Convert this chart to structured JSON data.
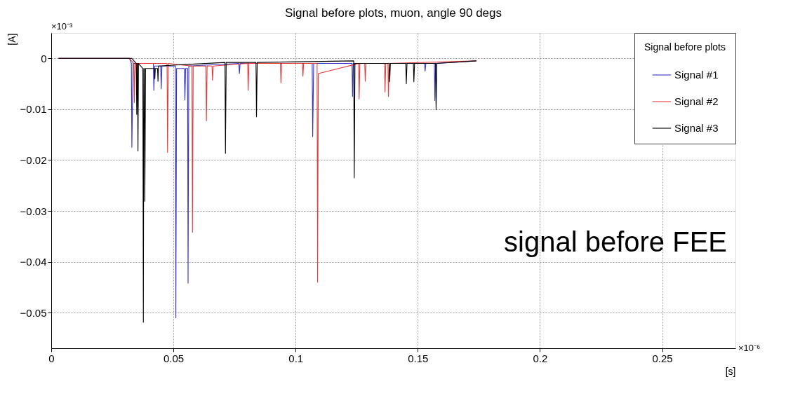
{
  "chart_data": {
    "type": "line",
    "title": "Signal before plots, muon, angle 90 degs",
    "xlabel": "[s]",
    "ylabel": "[A]",
    "legend_title": "Signal before plots",
    "xlim": [
      0,
      0.28
    ],
    "ylim": [
      -0.057,
      0.005
    ],
    "xticks": [
      0,
      0.05,
      0.1,
      0.15,
      0.2,
      0.25
    ],
    "yticks": [
      0,
      -0.01,
      -0.02,
      -0.03,
      -0.04,
      -0.05
    ],
    "grid": true,
    "legend": "top right",
    "marker": "none",
    "line_style": "solid",
    "annotations": [
      "×10⁻³",
      "×10⁻⁶",
      "signal before FEE"
    ],
    "series": [
      {
        "name": "Signal #1",
        "color": "#3333cc",
        "x": [
          0.003,
          0.032,
          0.0328,
          0.033,
          0.0335,
          0.0418,
          0.042,
          0.0423,
          0.0448,
          0.045,
          0.0453,
          0.0508,
          0.051,
          0.0513,
          0.0545,
          0.0547,
          0.055,
          0.0558,
          0.056,
          0.0563,
          0.0768,
          0.077,
          0.0773,
          0.1068,
          0.107,
          0.1074,
          0.1231,
          0.1233,
          0.1236,
          0.1528,
          0.153,
          0.1533,
          0.1568,
          0.157,
          0.1573,
          0.174
        ],
        "values": [
          0,
          0,
          -0.001,
          -0.0175,
          -0.001,
          -0.001,
          -0.0063,
          -0.0015,
          -0.0015,
          -0.006,
          -0.0015,
          -0.0015,
          -0.051,
          -0.002,
          -0.002,
          -0.0082,
          -0.002,
          -0.002,
          -0.0442,
          -0.0015,
          -0.001,
          -0.003,
          -0.001,
          -0.001,
          -0.0154,
          -0.001,
          -0.001,
          -0.0075,
          -0.001,
          -0.001,
          -0.0025,
          -0.001,
          -0.001,
          -0.0083,
          -0.001,
          -0.0005
        ]
      },
      {
        "name": "Signal #2",
        "color": "#e83a3a",
        "x": [
          0.003,
          0.032,
          0.0338,
          0.034,
          0.0343,
          0.0348,
          0.035,
          0.0353,
          0.0474,
          0.0476,
          0.0479,
          0.0576,
          0.0578,
          0.0581,
          0.0633,
          0.0635,
          0.0638,
          0.0658,
          0.066,
          0.0663,
          0.0804,
          0.0806,
          0.0809,
          0.0938,
          0.094,
          0.0943,
          0.1028,
          0.103,
          0.1033,
          0.1088,
          0.109,
          0.1093,
          0.1258,
          0.126,
          0.1263,
          0.1283,
          0.1285,
          0.1288,
          0.1364,
          0.1366,
          0.1369,
          0.1378,
          0.138,
          0.1383,
          0.174
        ],
        "values": [
          0,
          0,
          -0.001,
          -0.0087,
          -0.001,
          -0.001,
          -0.005,
          -0.001,
          -0.001,
          -0.0185,
          -0.001,
          -0.0015,
          -0.0342,
          -0.0015,
          -0.0015,
          -0.0123,
          -0.0015,
          -0.0015,
          -0.0043,
          -0.0015,
          -0.001,
          -0.0063,
          -0.001,
          -0.001,
          -0.0048,
          -0.001,
          -0.001,
          -0.0035,
          -0.001,
          -0.001,
          -0.044,
          -0.003,
          -0.001,
          -0.008,
          -0.001,
          -0.001,
          -0.0045,
          -0.001,
          -0.001,
          -0.0066,
          -0.001,
          -0.001,
          -0.0075,
          -0.001,
          -0.0005
        ]
      },
      {
        "name": "Signal #3",
        "color": "#000000",
        "x": [
          0.003,
          0.033,
          0.0348,
          0.035,
          0.0352,
          0.0353,
          0.0355,
          0.0357,
          0.0375,
          0.0377,
          0.0379,
          0.0381,
          0.0383,
          0.0386,
          0.0422,
          0.0424,
          0.0426,
          0.0435,
          0.0437,
          0.0439,
          0.0711,
          0.0713,
          0.0716,
          0.0838,
          0.084,
          0.0843,
          0.1238,
          0.124,
          0.1243,
          0.1383,
          0.1385,
          0.1388,
          0.1451,
          0.1453,
          0.1456,
          0.1482,
          0.1484,
          0.1487,
          0.1573,
          0.1575,
          0.1578,
          0.174
        ],
        "values": [
          0,
          0,
          -0.001,
          -0.011,
          -0.001,
          -0.001,
          -0.0182,
          -0.001,
          -0.002,
          -0.0519,
          -0.002,
          -0.002,
          -0.0281,
          -0.002,
          -0.002,
          -0.004,
          -0.002,
          -0.002,
          -0.0045,
          -0.0015,
          -0.0008,
          -0.0187,
          -0.0008,
          -0.0008,
          -0.0115,
          -0.0008,
          -0.0005,
          -0.0235,
          -0.001,
          -0.001,
          -0.0046,
          -0.001,
          -0.001,
          -0.005,
          -0.001,
          -0.001,
          -0.0046,
          -0.001,
          -0.001,
          -0.0101,
          -0.001,
          -0.0005
        ]
      }
    ]
  }
}
